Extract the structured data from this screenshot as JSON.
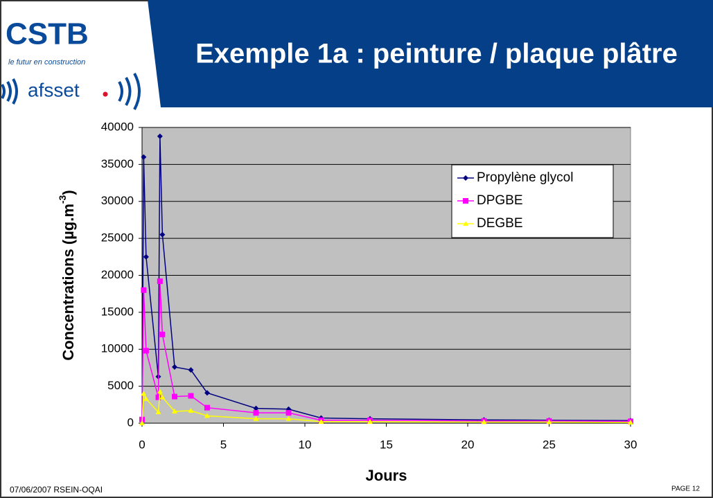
{
  "slide": {
    "title": "Exemple 1a : peinture / plaque plâtre",
    "logo_main": "CSTB",
    "logo_tagline": "le futur en construction",
    "logo_second": "afsset",
    "footer_left": "07/06/2007  RSEIN-OQAI",
    "footer_right": "PAGE 12"
  },
  "chart_data": {
    "type": "line",
    "x": [
      0,
      0.1,
      0.25,
      1,
      1.1,
      1.25,
      2,
      3,
      4,
      7,
      9,
      11,
      14,
      21,
      25,
      30
    ],
    "series": [
      {
        "name": "Propylène glycol",
        "color": "#000080",
        "marker": "diamond",
        "values": [
          300,
          36000,
          22500,
          6300,
          38800,
          25500,
          7600,
          7200,
          4100,
          2000,
          1900,
          700,
          600,
          450,
          400,
          350
        ]
      },
      {
        "name": "DPGBE",
        "color": "#ff00ff",
        "marker": "square",
        "values": [
          500,
          18000,
          9800,
          3500,
          19200,
          12000,
          3600,
          3700,
          2100,
          1400,
          1400,
          400,
          400,
          300,
          300,
          250
        ]
      },
      {
        "name": "DEGBE",
        "color": "#ffff00",
        "marker": "triangle",
        "values": [
          0,
          4000,
          3300,
          1500,
          4300,
          3500,
          1600,
          1700,
          1000,
          600,
          600,
          200,
          200,
          150,
          150,
          100
        ]
      }
    ],
    "xlim": [
      0,
      30
    ],
    "xticks": [
      0,
      5,
      10,
      15,
      20,
      25,
      30
    ],
    "ylim": [
      0,
      40000
    ],
    "yticks": [
      0,
      5000,
      10000,
      15000,
      20000,
      25000,
      30000,
      35000,
      40000
    ],
    "xlabel": "Jours",
    "ylabel": "Concentrations (µg.m",
    "ylabel_sup": "-3",
    "ylabel_end": ")",
    "grid": true,
    "legend": "upper right",
    "plot_background": "#c0c0c0"
  }
}
